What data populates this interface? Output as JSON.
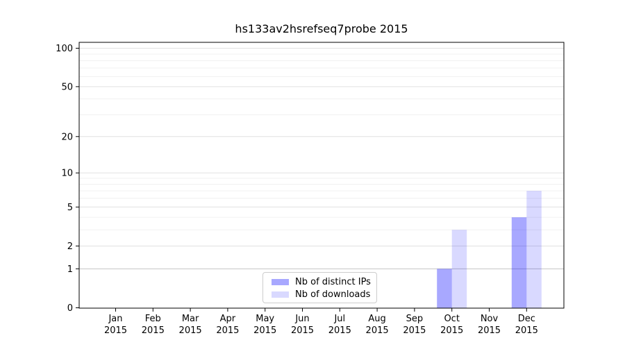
{
  "chart_data": {
    "type": "bar",
    "title": "hs133av2hsrefseq7probe 2015",
    "categories": [
      "Jan",
      "Feb",
      "Mar",
      "Apr",
      "May",
      "Jun",
      "Jul",
      "Aug",
      "Sep",
      "Oct",
      "Nov",
      "Dec"
    ],
    "x_year_label": "2015",
    "series": [
      {
        "name": "Nb of distinct IPs",
        "base_color": "#0000ff",
        "opacity": 0.34,
        "values": [
          0,
          0,
          0,
          0,
          0,
          0,
          0,
          0,
          0,
          1,
          0,
          4
        ]
      },
      {
        "name": "Nb of downloads",
        "base_color": "#0000ff",
        "opacity": 0.15,
        "values": [
          0,
          0,
          0,
          0,
          0,
          0,
          0,
          0,
          0,
          3,
          0,
          7
        ]
      }
    ],
    "yscale": "log1p",
    "yticks": [
      0,
      1,
      2,
      5,
      10,
      20,
      50,
      100
    ],
    "y_minor_gridlines": [
      3,
      4,
      6,
      7,
      8,
      9,
      30,
      40,
      60,
      70,
      80,
      90
    ],
    "ylim": [
      0,
      111
    ],
    "grid": true,
    "legend_position": "lower center",
    "colors": {
      "grid_major": "#e0e0e0",
      "grid_minor": "#f0f0f0",
      "grid_unit_line": "#c4c4c4",
      "axis": "#000000",
      "text": "#000000",
      "legend_border": "#cccccc"
    }
  }
}
